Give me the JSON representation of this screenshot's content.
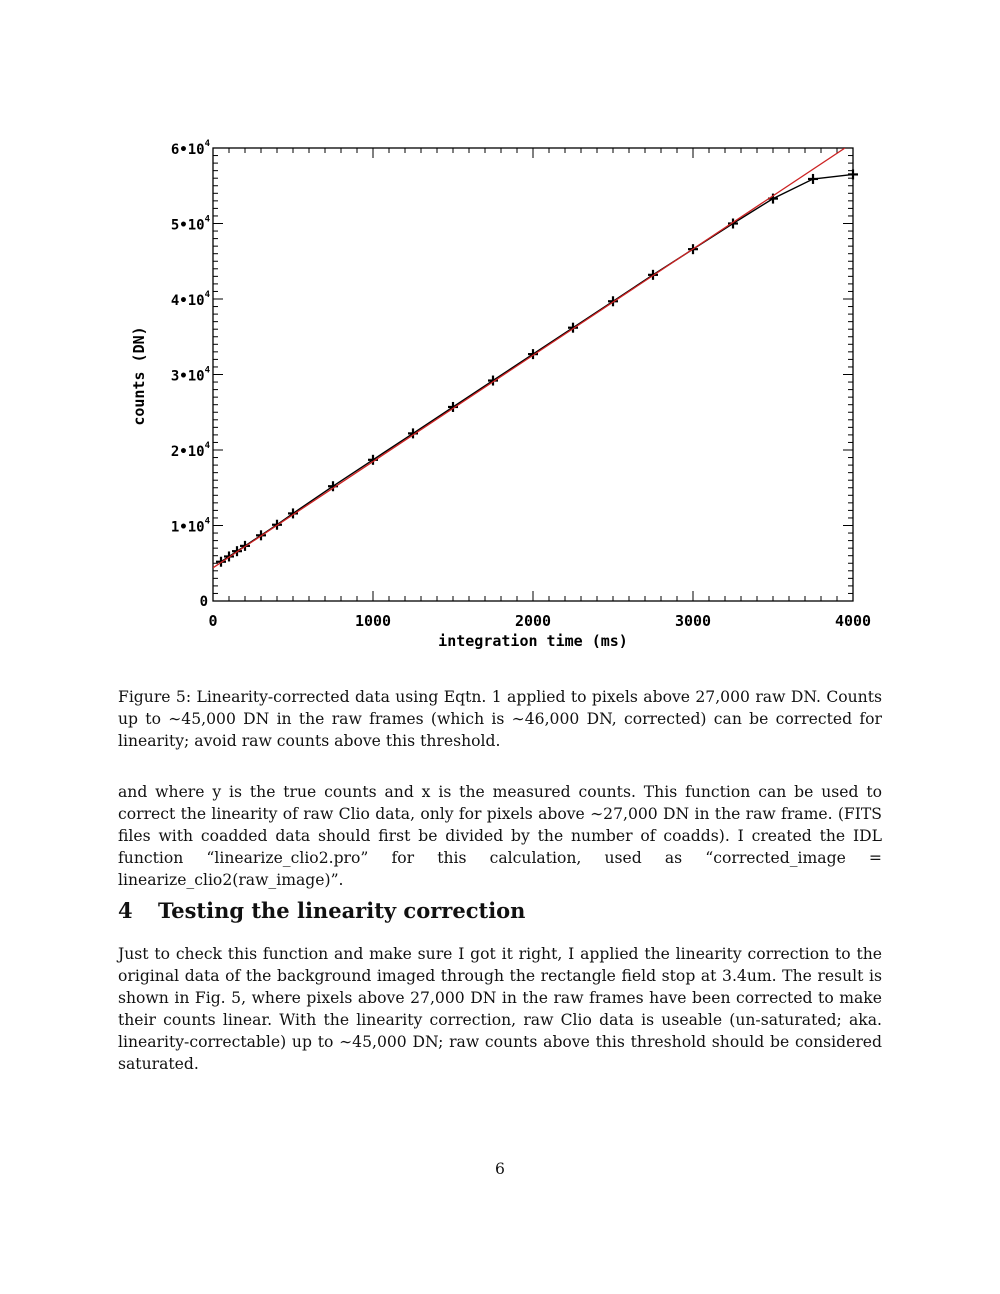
{
  "chart_data": {
    "type": "scatter",
    "xlabel": "integration time (ms)",
    "ylabel": "counts (DN)",
    "xlim": [
      0,
      4000
    ],
    "ylim": [
      0,
      60000
    ],
    "x_ticks": [
      {
        "value": 0,
        "label": "0"
      },
      {
        "value": 1000,
        "label": "1000"
      },
      {
        "value": 2000,
        "label": "2000"
      },
      {
        "value": 3000,
        "label": "3000"
      },
      {
        "value": 4000,
        "label": "4000"
      }
    ],
    "y_ticks": [
      {
        "value": 0,
        "base": "0",
        "exp": ""
      },
      {
        "value": 10000,
        "base": "1•10",
        "exp": "4"
      },
      {
        "value": 20000,
        "base": "2•10",
        "exp": "4"
      },
      {
        "value": 30000,
        "base": "3•10",
        "exp": "4"
      },
      {
        "value": 40000,
        "base": "4•10",
        "exp": "4"
      },
      {
        "value": 50000,
        "base": "5•10",
        "exp": "4"
      },
      {
        "value": 60000,
        "base": "6•10",
        "exp": "4"
      }
    ],
    "grid": false,
    "series": [
      {
        "style": "black-line-with-plus-markers",
        "color": "#000000",
        "x": [
          50,
          100,
          150,
          200,
          300,
          400,
          500,
          750,
          1000,
          1250,
          1500,
          1750,
          2000,
          2250,
          2500,
          2750,
          3000,
          3250,
          3500,
          3750,
          4000
        ],
        "y": [
          5200,
          5900,
          6600,
          7300,
          8700,
          10100,
          11600,
          15200,
          18700,
          22200,
          25700,
          29200,
          32700,
          36200,
          39700,
          43200,
          46600,
          50000,
          53300,
          55900,
          56500
        ]
      },
      {
        "style": "red-fit-line",
        "color": "#cc2222",
        "x": [
          0,
          3950
        ],
        "y": [
          4400,
          60000
        ]
      }
    ]
  },
  "caption": "Figure 5: Linearity-corrected data using Eqtn. 1 applied to pixels above 27,000 raw DN. Counts up to ∼45,000 DN in the raw frames (which is ∼46,000 DN, corrected) can be corrected for linearity; avoid raw counts above this threshold.",
  "paragraph1": "and where y is the true counts and x is the measured counts. This function can be used to correct the linearity of raw Clio data, only for pixels above ∼27,000 DN in the raw frame. (FITS files with coadded data should first be divided by the number of coadds). I created the IDL function “linearize_clio2.pro” for this calculation, used as “corrected_image = linearize_clio2(raw_image)”.",
  "section": {
    "number": "4",
    "title": "Testing the linearity correction"
  },
  "paragraph2": "Just to check this function and make sure I got it right, I applied the linearity correction to the original data of the background imaged through the rectangle field stop at 3.4um. The result is shown in Fig. 5, where pixels above 27,000 DN in the raw frames have been corrected to make their counts linear. With the linearity correction, raw Clio data is useable (un-saturated; aka. linearity-correctable) up to ∼45,000 DN; raw counts above this threshold should be considered saturated.",
  "page_number": "6"
}
